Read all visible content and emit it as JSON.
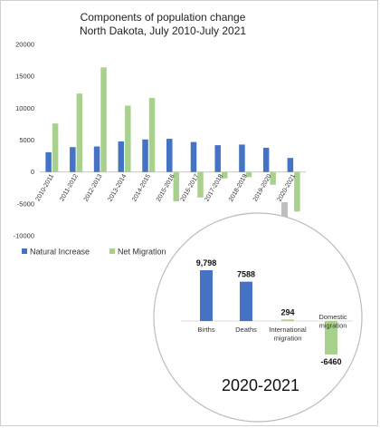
{
  "chart_data": [
    {
      "type": "bar",
      "title": "Components of population change",
      "subtitle": "North Dakota, July 2010-July 2021",
      "categories": [
        "2010-2011",
        "2011-2012",
        "2012-2013",
        "2013-2014",
        "2014-2015",
        "2015-2016",
        "2016-2017",
        "2017-2018",
        "2018-2019",
        "2019-2020",
        "2020-2021"
      ],
      "series": [
        {
          "name": "Natural Increase",
          "color": "#4472c4",
          "values": [
            3100,
            3900,
            4000,
            4800,
            5100,
            5200,
            4700,
            4200,
            4300,
            3800,
            2200
          ]
        },
        {
          "name": "Net Migration",
          "color": "#a9d18e",
          "values": [
            7600,
            12300,
            16400,
            10400,
            11600,
            -4600,
            -4000,
            -1000,
            -800,
            -2000,
            -6200
          ]
        }
      ],
      "ylim": [
        -10000,
        20000
      ],
      "yticks": [
        -10000,
        -5000,
        0,
        5000,
        10000,
        15000,
        20000
      ],
      "ytick_labels": [
        "-10000",
        "-5000",
        "0",
        "5000",
        "10000",
        "15000",
        "20000"
      ],
      "grid": false,
      "legend": "bottom-left"
    },
    {
      "type": "bar",
      "title": "2020-2021",
      "categories": [
        "Births",
        "Deaths",
        "International migration",
        "Domestic migration"
      ],
      "values": [
        9798,
        7588,
        294,
        -6460
      ],
      "value_labels": [
        "9,798",
        "7588",
        "294",
        "-6460"
      ],
      "colors": [
        "#4472c4",
        "#4472c4",
        "#a9d18e",
        "#a9d18e"
      ]
    }
  ]
}
